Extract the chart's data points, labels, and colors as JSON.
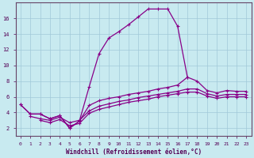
{
  "xlabel": "Windchill (Refroidissement éolien,°C)",
  "bg_color": "#c8eaf0",
  "grid_color": "#a0c8d8",
  "line_color": "#880088",
  "xlim": [
    -0.5,
    23.5
  ],
  "ylim": [
    1.0,
    18.0
  ],
  "xticks": [
    0,
    1,
    2,
    3,
    4,
    5,
    6,
    7,
    8,
    9,
    10,
    11,
    12,
    13,
    14,
    15,
    16,
    17,
    18,
    19,
    20,
    21,
    22,
    23
  ],
  "yticks": [
    2,
    4,
    6,
    8,
    10,
    12,
    14,
    16
  ],
  "curve_main": {
    "x": [
      0,
      1,
      2,
      3,
      4,
      5,
      6,
      7,
      8,
      9,
      10,
      11,
      12,
      13,
      14,
      15,
      16,
      17
    ],
    "y": [
      5.0,
      3.8,
      3.8,
      3.2,
      3.6,
      2.0,
      2.9,
      7.3,
      11.5,
      13.5,
      14.3,
      15.2,
      16.2,
      17.2,
      17.2,
      17.2,
      15.0,
      8.5
    ]
  },
  "curve_upper_flat": {
    "x": [
      0,
      1,
      2,
      3,
      4,
      5,
      6,
      7,
      8,
      9,
      10,
      11,
      12,
      13,
      14,
      15,
      16,
      17,
      18,
      19,
      20,
      21,
      22,
      23
    ],
    "y": [
      5.0,
      3.8,
      3.8,
      3.2,
      3.6,
      2.0,
      2.9,
      4.9,
      5.5,
      5.8,
      6.0,
      6.3,
      6.5,
      6.7,
      7.0,
      7.2,
      7.5,
      8.5,
      8.0,
      6.8,
      6.5,
      6.8,
      6.7,
      6.7
    ]
  },
  "curve_mid_flat": {
    "x": [
      1,
      2,
      3,
      4,
      5,
      6,
      7,
      8,
      9,
      10,
      11,
      12,
      13,
      14,
      15,
      16,
      17,
      18,
      19,
      20,
      21,
      22,
      23
    ],
    "y": [
      3.5,
      3.2,
      3.0,
      3.4,
      2.7,
      3.0,
      4.2,
      4.8,
      5.1,
      5.4,
      5.6,
      5.9,
      6.1,
      6.3,
      6.5,
      6.7,
      7.0,
      7.0,
      6.4,
      6.1,
      6.3,
      6.3,
      6.3
    ]
  },
  "curve_lower_flat": {
    "x": [
      2,
      3,
      4,
      5,
      6,
      7,
      8,
      9,
      10,
      11,
      12,
      13,
      14,
      15,
      16,
      17,
      18,
      19,
      20,
      21,
      22,
      23
    ],
    "y": [
      3.0,
      2.7,
      3.1,
      2.3,
      2.6,
      3.9,
      4.4,
      4.7,
      5.0,
      5.3,
      5.5,
      5.7,
      6.0,
      6.2,
      6.4,
      6.6,
      6.6,
      6.1,
      5.8,
      6.0,
      6.0,
      6.0
    ]
  }
}
